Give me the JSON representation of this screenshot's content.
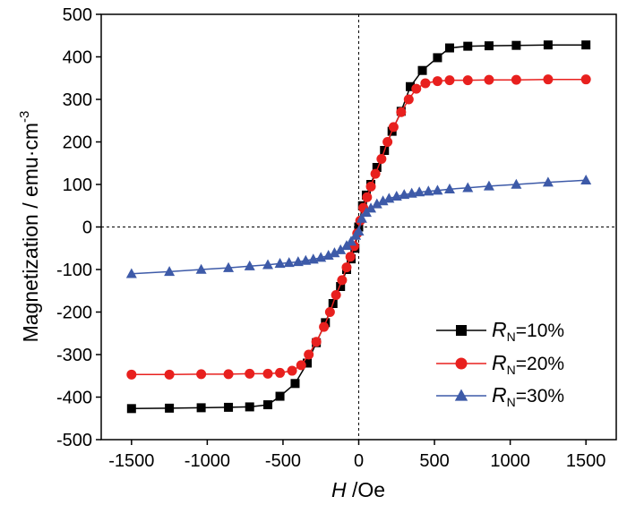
{
  "chart_data": {
    "type": "line",
    "xlabel": {
      "italic": "H",
      "rest": " /Oe"
    },
    "ylabel": {
      "main": "Magnetization / emu·cm",
      "sup": "-3"
    },
    "xlim": [
      -1700,
      1700
    ],
    "ylim": [
      -500,
      500
    ],
    "xticks": [
      -1500,
      -1000,
      -500,
      0,
      500,
      1000,
      1500
    ],
    "yticks": [
      -500,
      -400,
      -300,
      -200,
      -100,
      0,
      100,
      200,
      300,
      400,
      500
    ],
    "grid": false,
    "zero_lines": "dashed",
    "legend_position": "bottom-right",
    "series": [
      {
        "legend": {
          "italic": "R",
          "sub": "N",
          "rest": "=10%"
        },
        "color": "#000000",
        "marker": "square",
        "x": [
          -1500,
          -1250,
          -1040,
          -860,
          -720,
          -600,
          -520,
          -420,
          -340,
          -280,
          -220,
          -170,
          -120,
          -80,
          -50,
          -25,
          0,
          25,
          50,
          80,
          120,
          170,
          220,
          280,
          340,
          420,
          520,
          600,
          720,
          860,
          1040,
          1250,
          1500
        ],
        "y": [
          -427,
          -426,
          -425,
          -424,
          -423,
          -418,
          -398,
          -368,
          -320,
          -272,
          -225,
          -180,
          -140,
          -100,
          -75,
          -50,
          0,
          50,
          75,
          100,
          140,
          180,
          225,
          272,
          330,
          368,
          398,
          421,
          425,
          426,
          427,
          428,
          428
        ]
      },
      {
        "legend": {
          "italic": "R",
          "sub": "N",
          "rest": "=20%"
        },
        "color": "#e8201e",
        "marker": "circle",
        "x": [
          -1500,
          -1250,
          -1040,
          -860,
          -720,
          -600,
          -520,
          -440,
          -380,
          -330,
          -280,
          -230,
          -190,
          -150,
          -110,
          -80,
          -55,
          -30,
          -10,
          10,
          30,
          55,
          80,
          110,
          150,
          190,
          230,
          280,
          330,
          380,
          440,
          520,
          600,
          720,
          860,
          1040,
          1250,
          1500
        ],
        "y": [
          -347,
          -347,
          -346,
          -346,
          -345,
          -345,
          -343,
          -338,
          -325,
          -300,
          -270,
          -235,
          -200,
          -160,
          -125,
          -95,
          -70,
          -45,
          -15,
          15,
          45,
          70,
          95,
          125,
          160,
          200,
          235,
          270,
          300,
          325,
          338,
          343,
          345,
          345,
          346,
          346,
          347,
          347
        ]
      },
      {
        "legend": {
          "italic": "R",
          "sub": "N",
          "rest": "=30%"
        },
        "color": "#3d5aa8",
        "marker": "triangle",
        "x": [
          -1500,
          -1250,
          -1040,
          -860,
          -720,
          -600,
          -520,
          -460,
          -400,
          -350,
          -300,
          -250,
          -200,
          -160,
          -120,
          -80,
          -50,
          -20,
          0,
          20,
          50,
          80,
          120,
          160,
          200,
          250,
          300,
          350,
          400,
          460,
          520,
          600,
          720,
          860,
          1040,
          1250,
          1500
        ],
        "y": [
          -110,
          -105,
          -100,
          -96,
          -92,
          -89,
          -86,
          -84,
          -82,
          -79,
          -76,
          -72,
          -67,
          -61,
          -54,
          -44,
          -34,
          -20,
          -10,
          20,
          34,
          44,
          54,
          61,
          67,
          72,
          76,
          79,
          82,
          84,
          86,
          89,
          92,
          96,
          100,
          105,
          110
        ]
      }
    ]
  }
}
